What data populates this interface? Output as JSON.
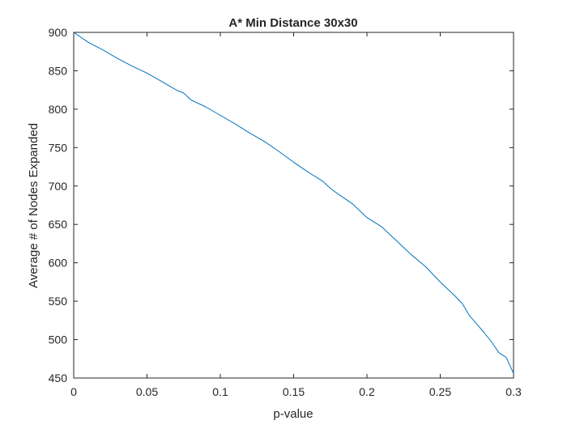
{
  "chart_data": {
    "type": "line",
    "title": "A* Min Distance 30x30",
    "xlabel": "p-value",
    "ylabel": "Average # of Nodes Expanded",
    "xlim": [
      0,
      0.3
    ],
    "ylim": [
      450,
      900
    ],
    "x_ticks": [
      0,
      0.05,
      0.1,
      0.15,
      0.2,
      0.25,
      0.3
    ],
    "x_tick_labels": [
      "0",
      "0.05",
      "0.1",
      "0.15",
      "0.2",
      "0.25",
      "0.3"
    ],
    "y_ticks": [
      450,
      500,
      550,
      600,
      650,
      700,
      750,
      800,
      850,
      900
    ],
    "y_tick_labels": [
      "450",
      "500",
      "550",
      "600",
      "650",
      "700",
      "750",
      "800",
      "850",
      "900"
    ],
    "grid": false,
    "series": [
      {
        "color": "#0072BD",
        "x": [
          0,
          0.01,
          0.02,
          0.03,
          0.04,
          0.05,
          0.06,
          0.07,
          0.075,
          0.08,
          0.09,
          0.1,
          0.11,
          0.12,
          0.13,
          0.14,
          0.15,
          0.16,
          0.17,
          0.175,
          0.18,
          0.19,
          0.2,
          0.21,
          0.22,
          0.23,
          0.24,
          0.25,
          0.26,
          0.265,
          0.27,
          0.275,
          0.28,
          0.285,
          0.29,
          0.295,
          0.3
        ],
        "y": [
          900,
          887,
          877,
          866,
          856,
          847,
          836,
          825,
          821,
          812,
          803,
          792,
          781,
          769,
          758,
          745,
          731,
          718,
          706,
          697,
          690,
          677,
          659,
          647,
          629,
          611,
          595,
          575,
          557,
          547,
          531,
          520,
          509,
          497,
          483,
          477,
          456
        ]
      }
    ]
  }
}
